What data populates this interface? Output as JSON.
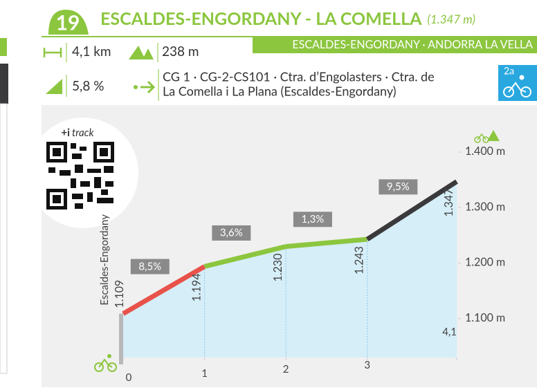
{
  "header": {
    "number": "19",
    "title": "ESCALDES-ENGORDANY - LA COMELLA",
    "summit": "(1.347 m)",
    "region": "ESCALDES-ENGORDANY · ANDORRA LA VELLA",
    "category": "2a"
  },
  "stats": {
    "distance": "4,1 km",
    "elevation_gain": "238 m",
    "average_gradient": "5,8 %",
    "route": [
      "CG 1 · CG-2-CS101 · Ctra. d’Engolasters · Ctra. de",
      "La Comella i La Plana (Escaldes-Engordany)"
    ]
  },
  "qr": {
    "prefix": "+i",
    "label": "track"
  },
  "chart_data": {
    "type": "area",
    "start_label": "Escaldes-Engordany",
    "x": [
      0,
      1,
      2,
      3,
      4.1
    ],
    "series": [
      {
        "values": [
          1109,
          1194,
          1230,
          1243,
          1347
        ],
        "value_labels": [
          "1.109",
          "1.194",
          "1.230",
          "1.243",
          "1.347"
        ],
        "color": "#d6eef8"
      }
    ],
    "gradients": {
      "values": [
        8.5,
        3.6,
        1.3,
        9.5
      ],
      "value_labels": [
        "8,5%",
        "3,6%",
        "1,3%",
        "9,5%"
      ],
      "colors": [
        "#e8524a",
        "#8cc63f",
        "#8cc63f",
        "#3a3a3c"
      ]
    },
    "xlim": [
      0,
      4.1
    ],
    "xticks": [
      0,
      1,
      2,
      3,
      {
        "value": 4.1,
        "label": "4,1"
      }
    ],
    "ylim": [
      1030,
      1420
    ],
    "yticks": [
      {
        "value": 1100,
        "label": "1.100 m"
      },
      {
        "value": 1200,
        "label": "1.200 m"
      },
      {
        "value": 1300,
        "label": "1.300 m"
      },
      {
        "value": 1400,
        "label": "1.400 m"
      }
    ]
  }
}
